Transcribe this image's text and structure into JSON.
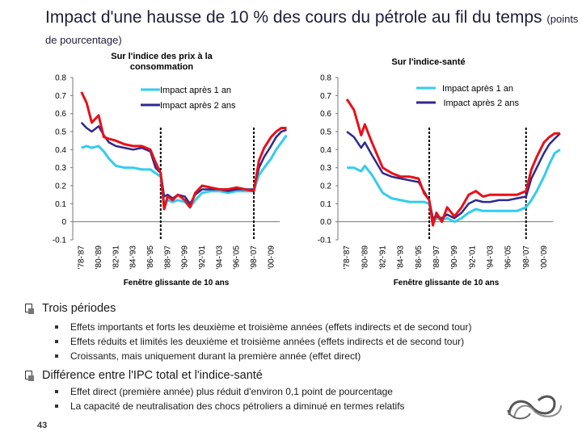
{
  "slide": {
    "title_main": "Impact d'une hausse de 10 % des cours du pétrole au fil du temps",
    "title_sub": "(points de pourcentage)",
    "page_number": "43",
    "logo_text": "∞"
  },
  "colors": {
    "series1": "#33ccee",
    "series2": "#2e2a8c",
    "series3": "#e8101a",
    "axis": "#555555",
    "vline": "#000000"
  },
  "chart_data": [
    {
      "type": "line",
      "title": "Sur l'indice des prix à la consommation",
      "xlabel": "Fenêtre glissante de 10 ans",
      "ylabel": "",
      "ylim": [
        -0.1,
        0.8
      ],
      "yticks": [
        "0.8",
        "0.7",
        "0.6",
        "0.5",
        "0.4",
        "0.3",
        "0.2",
        "0.1",
        "0",
        "-0.1"
      ],
      "categories": [
        "'78-'87",
        "'80-'89",
        "'82-'91",
        "'84-'93",
        "'86-'95",
        "'88-'97",
        "'90-'99",
        "'92-'01",
        "'94-'03",
        "'96-'05",
        "'98-'07",
        "'00-'09"
      ],
      "vlines": [
        4.6,
        10.0
      ],
      "legend": [
        "Impact après 1 an",
        "Impact après 2 ans"
      ],
      "series": [
        {
          "name": "Impact après 1 an",
          "color_key": "series1",
          "x": [
            0,
            0.3,
            0.6,
            1,
            1.3,
            1.6,
            2,
            2.5,
            3,
            3.5,
            4,
            4.3,
            4.6,
            4.8,
            5,
            5.3,
            5.6,
            6,
            6.3,
            6.6,
            7,
            7.5,
            8,
            8.5,
            9,
            9.5,
            10,
            10.3,
            10.6,
            11,
            11.3,
            11.6,
            11.9
          ],
          "values": [
            0.41,
            0.42,
            0.41,
            0.42,
            0.39,
            0.35,
            0.31,
            0.3,
            0.3,
            0.29,
            0.29,
            0.27,
            0.25,
            0.1,
            0.12,
            0.11,
            0.12,
            0.11,
            0.08,
            0.12,
            0.16,
            0.17,
            0.17,
            0.16,
            0.17,
            0.17,
            0.17,
            0.26,
            0.3,
            0.35,
            0.4,
            0.44,
            0.48
          ]
        },
        {
          "name": "Impact après 2 ans",
          "color_key": "series2",
          "x": [
            0,
            0.3,
            0.6,
            1,
            1.3,
            1.6,
            2,
            2.5,
            3,
            3.5,
            4,
            4.3,
            4.6,
            4.8,
            5,
            5.3,
            5.6,
            6,
            6.3,
            6.6,
            7,
            7.5,
            8,
            8.5,
            9,
            9.5,
            10,
            10.3,
            10.6,
            11,
            11.3,
            11.6,
            11.9
          ],
          "values": [
            0.55,
            0.52,
            0.5,
            0.53,
            0.48,
            0.44,
            0.42,
            0.41,
            0.4,
            0.41,
            0.39,
            0.3,
            0.27,
            0.14,
            0.15,
            0.13,
            0.15,
            0.14,
            0.1,
            0.15,
            0.18,
            0.18,
            0.18,
            0.17,
            0.18,
            0.18,
            0.18,
            0.3,
            0.36,
            0.42,
            0.47,
            0.5,
            0.51
          ]
        },
        {
          "name": "",
          "color_key": "series3",
          "x": [
            0,
            0.3,
            0.6,
            1,
            1.3,
            1.6,
            2,
            2.5,
            3,
            3.5,
            4,
            4.3,
            4.6,
            4.8,
            5,
            5.3,
            5.6,
            6,
            6.3,
            6.6,
            7,
            7.5,
            8,
            8.5,
            9,
            9.5,
            10,
            10.3,
            10.6,
            11,
            11.3,
            11.6,
            11.9
          ],
          "values": [
            0.72,
            0.66,
            0.55,
            0.59,
            0.47,
            0.46,
            0.45,
            0.43,
            0.42,
            0.42,
            0.4,
            0.33,
            0.27,
            0.07,
            0.14,
            0.12,
            0.15,
            0.12,
            0.08,
            0.16,
            0.2,
            0.19,
            0.18,
            0.18,
            0.19,
            0.18,
            0.17,
            0.34,
            0.41,
            0.47,
            0.5,
            0.52,
            0.52
          ]
        }
      ]
    },
    {
      "type": "line",
      "title": "Sur l'indice-santé",
      "xlabel": "Fenêtre glissante de 10 ans",
      "ylabel": "",
      "ylim": [
        -0.1,
        0.8
      ],
      "yticks": [
        "0.8",
        "0.7",
        "0.6",
        "0.5",
        "0.4",
        "0.3",
        "0.2",
        "0.1",
        "0.0",
        "-0.1"
      ],
      "categories": [
        "'78-'87",
        "'80-'89",
        "'82-'91",
        "'84-'93",
        "'86-'95",
        "'88-'97",
        "'90-'99",
        "'92-'01",
        "'94-'03",
        "'96-'05",
        "'98-'07",
        "'00-'09"
      ],
      "vlines": [
        4.6,
        10.0
      ],
      "legend": [
        "Impact après 1 an",
        "Impact après 2 ans"
      ],
      "series": [
        {
          "name": "Impact après 1 an",
          "color_key": "series1",
          "x": [
            0,
            0.4,
            0.8,
            1,
            1.4,
            2,
            2.5,
            3,
            3.5,
            4,
            4.3,
            4.6,
            4.8,
            5,
            5.3,
            5.6,
            6,
            6.4,
            6.8,
            7.2,
            7.6,
            8,
            8.5,
            9,
            9.5,
            10,
            10.3,
            10.6,
            11,
            11.3,
            11.6,
            11.9
          ],
          "values": [
            0.3,
            0.3,
            0.28,
            0.31,
            0.26,
            0.16,
            0.13,
            0.12,
            0.11,
            0.11,
            0.11,
            0.1,
            0.0,
            0.02,
            0.01,
            0.02,
            0.0,
            0.02,
            0.05,
            0.07,
            0.06,
            0.06,
            0.06,
            0.06,
            0.06,
            0.08,
            0.12,
            0.17,
            0.25,
            0.32,
            0.38,
            0.4
          ]
        },
        {
          "name": "Impact après 2 ans",
          "color_key": "series2",
          "x": [
            0,
            0.4,
            0.8,
            1,
            1.4,
            2,
            2.5,
            3,
            3.5,
            4,
            4.3,
            4.6,
            4.8,
            5,
            5.3,
            5.6,
            6,
            6.4,
            6.8,
            7.2,
            7.6,
            8,
            8.5,
            9,
            9.5,
            10,
            10.3,
            10.6,
            11,
            11.3,
            11.6,
            11.9
          ],
          "values": [
            0.5,
            0.47,
            0.41,
            0.44,
            0.37,
            0.27,
            0.25,
            0.24,
            0.23,
            0.22,
            0.17,
            0.12,
            0.02,
            0.03,
            0.02,
            0.04,
            0.02,
            0.05,
            0.1,
            0.12,
            0.11,
            0.11,
            0.12,
            0.12,
            0.13,
            0.14,
            0.24,
            0.3,
            0.38,
            0.43,
            0.46,
            0.49
          ]
        },
        {
          "name": "",
          "color_key": "series3",
          "x": [
            0,
            0.4,
            0.8,
            1,
            1.4,
            2,
            2.5,
            3,
            3.5,
            4,
            4.3,
            4.6,
            4.8,
            5,
            5.3,
            5.6,
            6,
            6.4,
            6.8,
            7.2,
            7.6,
            8,
            8.5,
            9,
            9.5,
            10,
            10.3,
            10.6,
            11,
            11.3,
            11.6,
            11.9
          ],
          "values": [
            0.68,
            0.62,
            0.48,
            0.54,
            0.44,
            0.3,
            0.27,
            0.25,
            0.25,
            0.24,
            0.16,
            0.12,
            -0.02,
            0.05,
            0.0,
            0.08,
            0.03,
            0.08,
            0.15,
            0.17,
            0.14,
            0.15,
            0.15,
            0.15,
            0.15,
            0.17,
            0.29,
            0.36,
            0.44,
            0.47,
            0.49,
            0.49
          ]
        }
      ]
    }
  ],
  "sections": [
    {
      "heading": "Trois périodes",
      "items": [
        "Effets importants et forts les deuxième et troisième années (effets indirects et de second tour)",
        "Effets réduits et limités les deuxième et troisième années (effets indirects et de second tour)",
        "Croissants, mais uniquement durant la première année (effet direct)"
      ]
    },
    {
      "heading": "Différence entre l'IPC total et l'indice-santé",
      "items": [
        "Effet direct (première année) plus réduit d'environ 0,1 point de pourcentage",
        "La capacité de neutralisation des chocs pétroliers a diminué en termes relatifs"
      ]
    }
  ]
}
